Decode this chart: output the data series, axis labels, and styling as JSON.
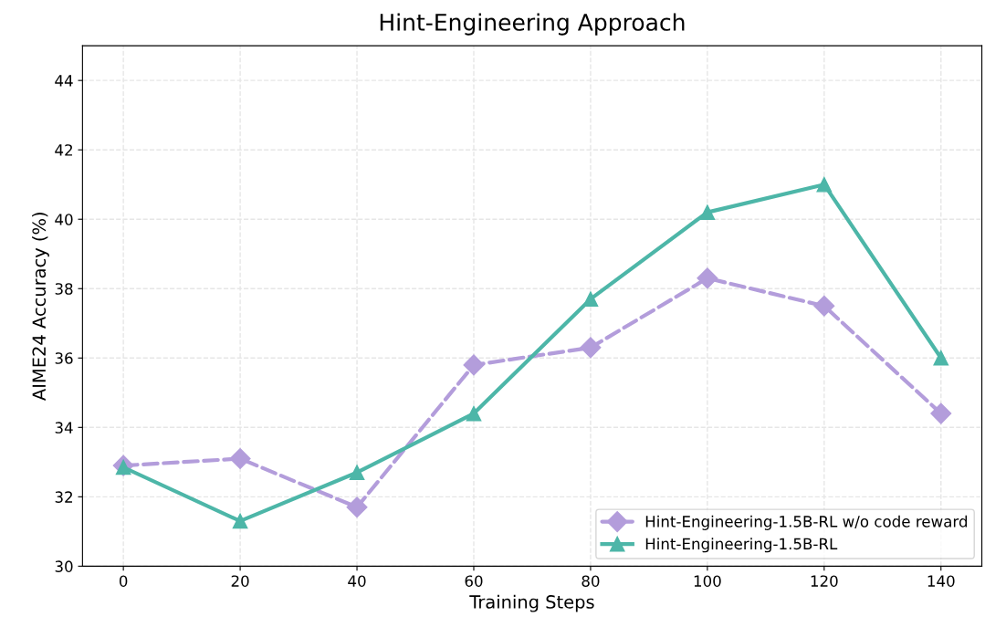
{
  "chart_data": {
    "type": "line",
    "title": "Hint-Engineering Approach",
    "xlabel": "Training Steps",
    "ylabel": "AIME24 Accuracy (%)",
    "x": [
      0,
      20,
      40,
      60,
      80,
      100,
      120,
      140
    ],
    "series": [
      {
        "name": "Hint-Engineering-1.5B-RL w/o code reward",
        "color": "#b39ddb",
        "marker": "diamond",
        "line_style": "dashed",
        "values": [
          32.9,
          33.1,
          31.7,
          35.8,
          36.3,
          38.3,
          37.5,
          34.4
        ]
      },
      {
        "name": "Hint-Engineering-1.5B-RL",
        "color": "#4db6a8",
        "marker": "triangle",
        "line_style": "solid",
        "values": [
          32.85,
          31.3,
          32.7,
          34.4,
          37.7,
          40.2,
          41.0,
          36.0
        ]
      }
    ],
    "xlim": [
      -7,
      147
    ],
    "xticks": [
      0,
      20,
      40,
      60,
      80,
      100,
      120,
      140
    ],
    "ylim": [
      30,
      45
    ],
    "yticks": [
      30,
      32,
      34,
      36,
      38,
      40,
      42,
      44
    ],
    "grid": true,
    "legend": "bottom right"
  }
}
